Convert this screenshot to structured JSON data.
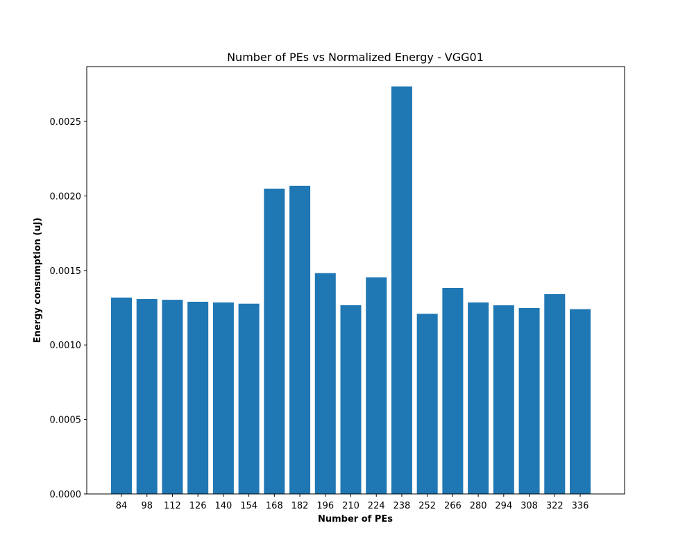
{
  "chart_data": {
    "type": "bar",
    "title": "Number of PEs vs Normalized Energy - VGG01",
    "xlabel": "Number of PEs",
    "ylabel": "Energy consumption (uJ)",
    "categories": [
      "84",
      "98",
      "112",
      "126",
      "140",
      "154",
      "168",
      "182",
      "196",
      "210",
      "224",
      "238",
      "252",
      "266",
      "280",
      "294",
      "308",
      "322",
      "336"
    ],
    "values": [
      0.001318,
      0.001308,
      0.001303,
      0.00129,
      0.001285,
      0.001277,
      0.002049,
      0.002068,
      0.001482,
      0.001267,
      0.001454,
      0.002735,
      0.001209,
      0.001383,
      0.001285,
      0.001266,
      0.001248,
      0.001341,
      0.00124
    ],
    "ylim": [
      0,
      0.002868
    ],
    "yticks": [
      0.0,
      0.0005,
      0.001,
      0.0015,
      0.002,
      0.0025
    ],
    "ytick_labels": [
      "0.0000",
      "0.0005",
      "0.0010",
      "0.0015",
      "0.0020",
      "0.0025"
    ],
    "bar_color": "#1f77b4",
    "grid": false,
    "legend": "none"
  }
}
